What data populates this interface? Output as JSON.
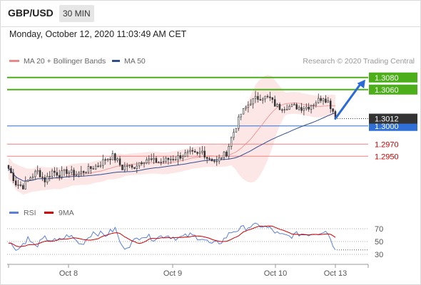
{
  "header": {
    "symbol": "GBP/USD",
    "timeframe": "30 MIN"
  },
  "datetime": "Monday, October 12, 2020 11:03:49 AM CET",
  "legend": {
    "bollinger": {
      "label": "MA 20 + Bollinger Bands",
      "color": "#e88a8a"
    },
    "ma50": {
      "label": "MA 50",
      "color": "#2f4f8f"
    }
  },
  "credit": "Research © 2020 Trading Central",
  "rsi_legend": {
    "rsi": {
      "label": "RSI",
      "color": "#5b7fd6"
    },
    "ma9": {
      "label": "9MA",
      "color": "#cc0000"
    }
  },
  "colors": {
    "candle": "#333333",
    "band_fill": "#fde2e2",
    "target_line": "#4caf1a",
    "pivot_line": "#2f6fd6",
    "support_line": "#f08080",
    "support_text": "#cc0000",
    "arrow": "#2a6ad6",
    "current_price_bg": "#333333"
  },
  "chart_data": {
    "type": "candlestick",
    "instrument": "GBP/USD",
    "interval": "30 MIN",
    "price_range": [
      1.2875,
      1.3095
    ],
    "x_tick_labels": [
      "Oct 8",
      "Oct 9",
      "Oct 10",
      "Oct 13"
    ],
    "levels": [
      {
        "label": "1.3080",
        "value": 1.308,
        "kind": "target"
      },
      {
        "label": "1.3060",
        "value": 1.306,
        "kind": "target"
      },
      {
        "label": "1.3000",
        "value": 1.3,
        "kind": "pivot"
      },
      {
        "label": "1.2970",
        "value": 1.297,
        "kind": "support"
      },
      {
        "label": "1.2950",
        "value": 1.295,
        "kind": "support"
      }
    ],
    "current_price": {
      "label": "1.3012",
      "value": 1.3012
    },
    "anchors": [
      [
        0,
        1.293
      ],
      [
        3,
        1.2905
      ],
      [
        6,
        1.29
      ],
      [
        9,
        1.2915
      ],
      [
        12,
        1.2925
      ],
      [
        15,
        1.291
      ],
      [
        18,
        1.2925
      ],
      [
        21,
        1.292
      ],
      [
        24,
        1.2925
      ],
      [
        28,
        1.292
      ],
      [
        31,
        1.2925
      ],
      [
        34,
        1.293
      ],
      [
        37,
        1.2935
      ],
      [
        40,
        1.2945
      ],
      [
        43,
        1.295
      ],
      [
        45,
        1.2942
      ],
      [
        47,
        1.293
      ],
      [
        49,
        1.2935
      ],
      [
        51,
        1.293
      ],
      [
        54,
        1.294
      ],
      [
        57,
        1.2945
      ],
      [
        60,
        1.2942
      ],
      [
        63,
        1.294
      ],
      [
        66,
        1.2945
      ],
      [
        69,
        1.2947
      ],
      [
        72,
        1.2952
      ],
      [
        75,
        1.2955
      ],
      [
        78,
        1.2952
      ],
      [
        80,
        1.2958
      ],
      [
        82,
        1.2948
      ],
      [
        84,
        1.2945
      ],
      [
        86,
        1.294
      ],
      [
        88,
        1.295
      ],
      [
        90,
        1.2955
      ],
      [
        92,
        1.298
      ],
      [
        94,
        1.3
      ],
      [
        96,
        1.302
      ],
      [
        98,
        1.303
      ],
      [
        100,
        1.304
      ],
      [
        102,
        1.3045
      ],
      [
        105,
        1.3048
      ],
      [
        108,
        1.3045
      ],
      [
        110,
        1.3035
      ],
      [
        112,
        1.303
      ],
      [
        115,
        1.3032
      ],
      [
        118,
        1.3032
      ],
      [
        121,
        1.303
      ],
      [
        124,
        1.3032
      ],
      [
        127,
        1.304
      ],
      [
        130,
        1.3048
      ],
      [
        132,
        1.304
      ],
      [
        134,
        1.3025
      ],
      [
        135,
        1.3012
      ]
    ],
    "projection": {
      "from": 1.3012,
      "to": 1.308
    },
    "rsi": {
      "levels": [
        70,
        50,
        30
      ],
      "anchors": [
        [
          0,
          48
        ],
        [
          4,
          38
        ],
        [
          8,
          55
        ],
        [
          11,
          42
        ],
        [
          15,
          55
        ],
        [
          20,
          50
        ],
        [
          25,
          60
        ],
        [
          30,
          45
        ],
        [
          35,
          65
        ],
        [
          40,
          60
        ],
        [
          44,
          70
        ],
        [
          47,
          40
        ],
        [
          50,
          45
        ],
        [
          55,
          60
        ],
        [
          60,
          55
        ],
        [
          65,
          60
        ],
        [
          70,
          55
        ],
        [
          75,
          60
        ],
        [
          80,
          55
        ],
        [
          84,
          45
        ],
        [
          88,
          50
        ],
        [
          92,
          65
        ],
        [
          96,
          70
        ],
        [
          100,
          74
        ],
        [
          104,
          75
        ],
        [
          108,
          70
        ],
        [
          112,
          60
        ],
        [
          116,
          58
        ],
        [
          120,
          62
        ],
        [
          124,
          62
        ],
        [
          128,
          64
        ],
        [
          131,
          68
        ],
        [
          133,
          55
        ],
        [
          135,
          37
        ]
      ]
    }
  }
}
